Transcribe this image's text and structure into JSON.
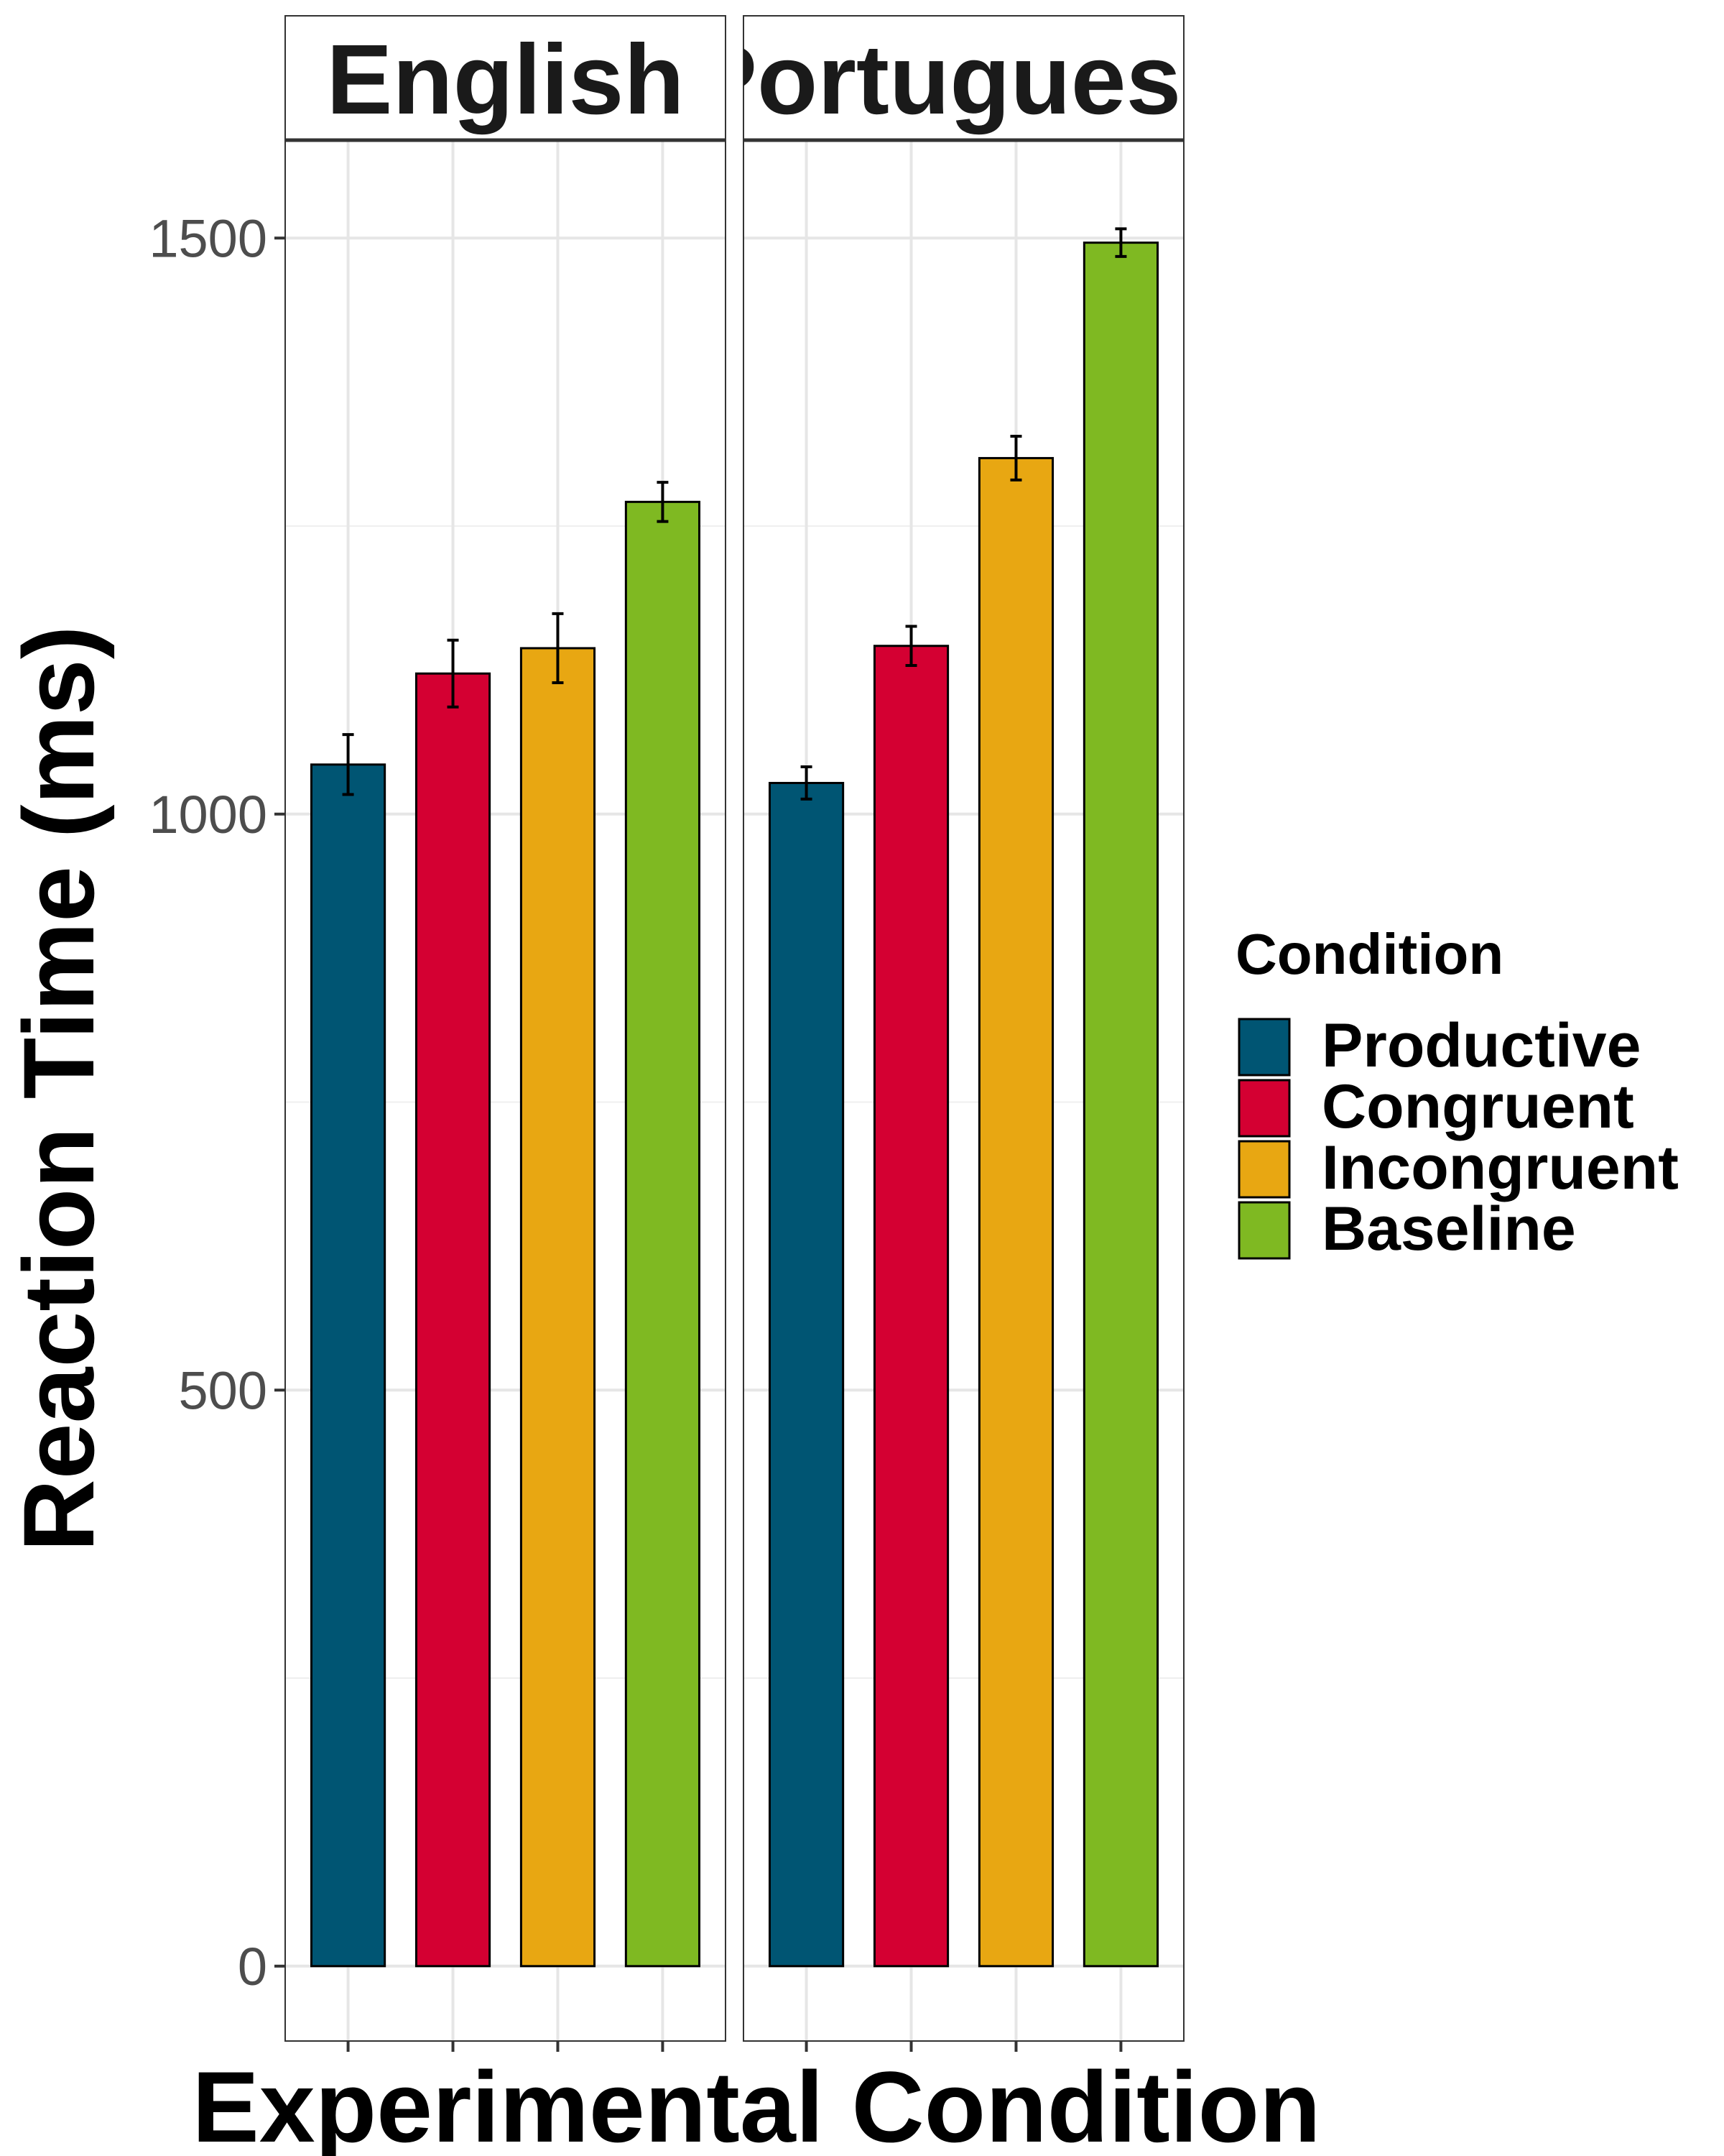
{
  "chart_data": {
    "type": "bar",
    "facets": [
      "English",
      "Portuguese"
    ],
    "categories": [
      "Productive",
      "Congruent",
      "Incongruent",
      "Baseline"
    ],
    "series": [
      {
        "name": "English",
        "values": [
          1043,
          1122,
          1144,
          1271
        ],
        "errors": [
          26,
          29,
          30,
          17
        ]
      },
      {
        "name": "Portuguese",
        "values": [
          1027,
          1146,
          1309,
          1496
        ],
        "errors": [
          14,
          17,
          19,
          12
        ]
      }
    ],
    "xlabel": "Experimental Condition",
    "ylabel": "Reaction Time (ms)",
    "ylim": [
      -65,
      1585
    ],
    "yticks": [
      0,
      500,
      1000,
      1500
    ],
    "legend": {
      "title": "Condition",
      "position": "right",
      "entries": [
        "Productive",
        "Congruent",
        "Incongruent",
        "Baseline"
      ]
    },
    "colors": [
      "#005573",
      "#d40032",
      "#e8a712",
      "#7fb922"
    ],
    "grid": true,
    "error_bars": true
  }
}
